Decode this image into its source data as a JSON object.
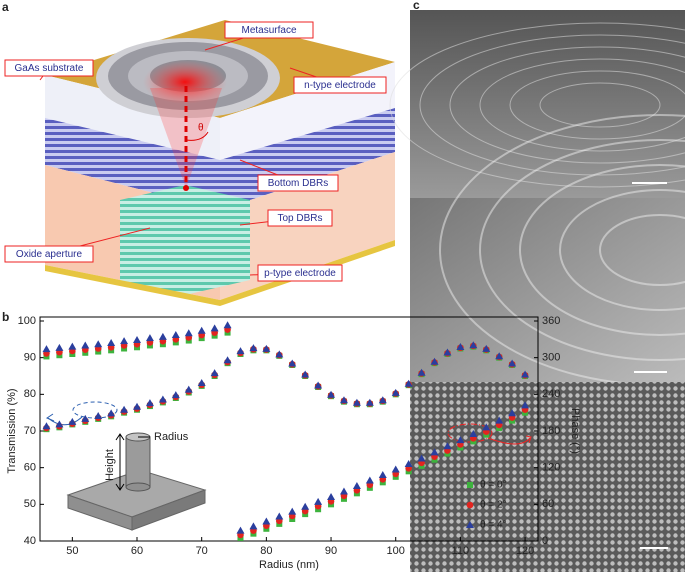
{
  "figure_a": {
    "label": "a",
    "callouts": [
      "Metasurface",
      "GaAs substrate",
      "n-type electrode",
      "Bottom DBRs",
      "Top DBRs",
      "Oxide aperture",
      "p-type electrode"
    ],
    "angle_label": "θ"
  },
  "chart_data": {
    "type": "scatter",
    "panel_label": "b",
    "x_label": "Radius (nm)",
    "y_label": "Transmission (%)",
    "y2_label": "Phase (°)",
    "inset_labels": [
      "Radius",
      "Height"
    ],
    "x": [
      46,
      48,
      50,
      52,
      54,
      56,
      58,
      60,
      62,
      64,
      66,
      68,
      70,
      72,
      74,
      76,
      78,
      80,
      82,
      84,
      86,
      88,
      90,
      92,
      94,
      96,
      98,
      100,
      102,
      104,
      106,
      108,
      110,
      112,
      114,
      116,
      118,
      120
    ],
    "xlim": [
      45,
      122
    ],
    "xticks": [
      50,
      60,
      70,
      80,
      90,
      100,
      110,
      120
    ],
    "ylim": [
      40,
      100
    ],
    "yticks": [
      40,
      50,
      60,
      70,
      80,
      90,
      100
    ],
    "y2lim": [
      0,
      360
    ],
    "y2ticks": [
      0,
      60,
      120,
      180,
      240,
      300,
      360
    ],
    "series": [
      {
        "name": "θ = 0°",
        "color": "#3db33d",
        "marker": "square",
        "values": [
          70.5,
          71,
          71.8,
          72.5,
          73.3,
          74,
          75,
          75.8,
          76.8,
          77.8,
          79,
          80.5,
          82.3,
          85,
          88.5,
          91,
          92,
          92,
          90.5,
          88,
          85,
          82,
          79.5,
          78,
          77.3,
          77.3,
          78,
          80,
          82.5,
          85.5,
          88.5,
          91,
          92.5,
          93,
          92,
          90,
          88,
          85
        ]
      },
      {
        "name": "θ = 2°",
        "color": "#e3241f",
        "marker": "circle",
        "values": [
          70.8,
          71.3,
          72,
          72.8,
          73.6,
          74.3,
          75.3,
          76.1,
          77.1,
          78.1,
          79.3,
          80.8,
          82.6,
          85.3,
          88.8,
          91.3,
          92.3,
          92.2,
          90.7,
          88.2,
          85.2,
          82.2,
          79.7,
          78.2,
          77.5,
          77.5,
          78.2,
          80.2,
          82.7,
          85.7,
          88.7,
          91.2,
          92.7,
          93.2,
          92.2,
          90.2,
          88.2,
          85.2
        ]
      },
      {
        "name": "θ = 4°",
        "color": "#2b3f9e",
        "marker": "triangle",
        "values": [
          71.3,
          71.8,
          72.5,
          73.3,
          74.1,
          74.8,
          75.8,
          76.6,
          77.6,
          78.6,
          79.8,
          81.3,
          83.1,
          85.8,
          89.3,
          91.8,
          92.6,
          92.4,
          90.9,
          88.4,
          85.4,
          82.4,
          79.9,
          78.4,
          77.7,
          77.7,
          78.4,
          80.4,
          82.9,
          85.9,
          88.9,
          91.4,
          92.9,
          93.4,
          92.4,
          90.4,
          88.4,
          85.4
        ]
      },
      {
        "axis": "y2",
        "color": "#3db33d",
        "marker": "square",
        "values": [
          302,
          304,
          306,
          308,
          310,
          312,
          315,
          317,
          320,
          322,
          325,
          328,
          332,
          336,
          341,
          5,
          12,
          20,
          28,
          36,
          44,
          52,
          60,
          69,
          78,
          87,
          96,
          105,
          114,
          123,
          133,
          143,
          153,
          163,
          174,
          185,
          197,
          210
        ]
      },
      {
        "axis": "y2",
        "color": "#e3241f",
        "marker": "circle",
        "values": [
          307,
          309,
          311,
          313,
          315,
          317,
          320,
          322,
          325,
          327,
          330,
          333,
          337,
          341,
          346,
          10,
          17,
          25,
          33,
          41,
          49,
          57,
          65,
          74,
          83,
          92,
          101,
          110,
          119,
          128,
          138,
          148,
          158,
          168,
          179,
          190,
          202,
          215
        ]
      },
      {
        "axis": "y2",
        "color": "#2b3f9e",
        "marker": "triangle",
        "values": [
          314,
          316,
          318,
          320,
          322,
          324,
          327,
          329,
          332,
          334,
          337,
          340,
          344,
          348,
          353,
          17,
          24,
          32,
          40,
          48,
          56,
          64,
          72,
          81,
          90,
          99,
          108,
          117,
          126,
          135,
          145,
          155,
          165,
          175,
          186,
          197,
          209,
          222
        ]
      }
    ]
  },
  "figure_c": {
    "label": "c"
  }
}
